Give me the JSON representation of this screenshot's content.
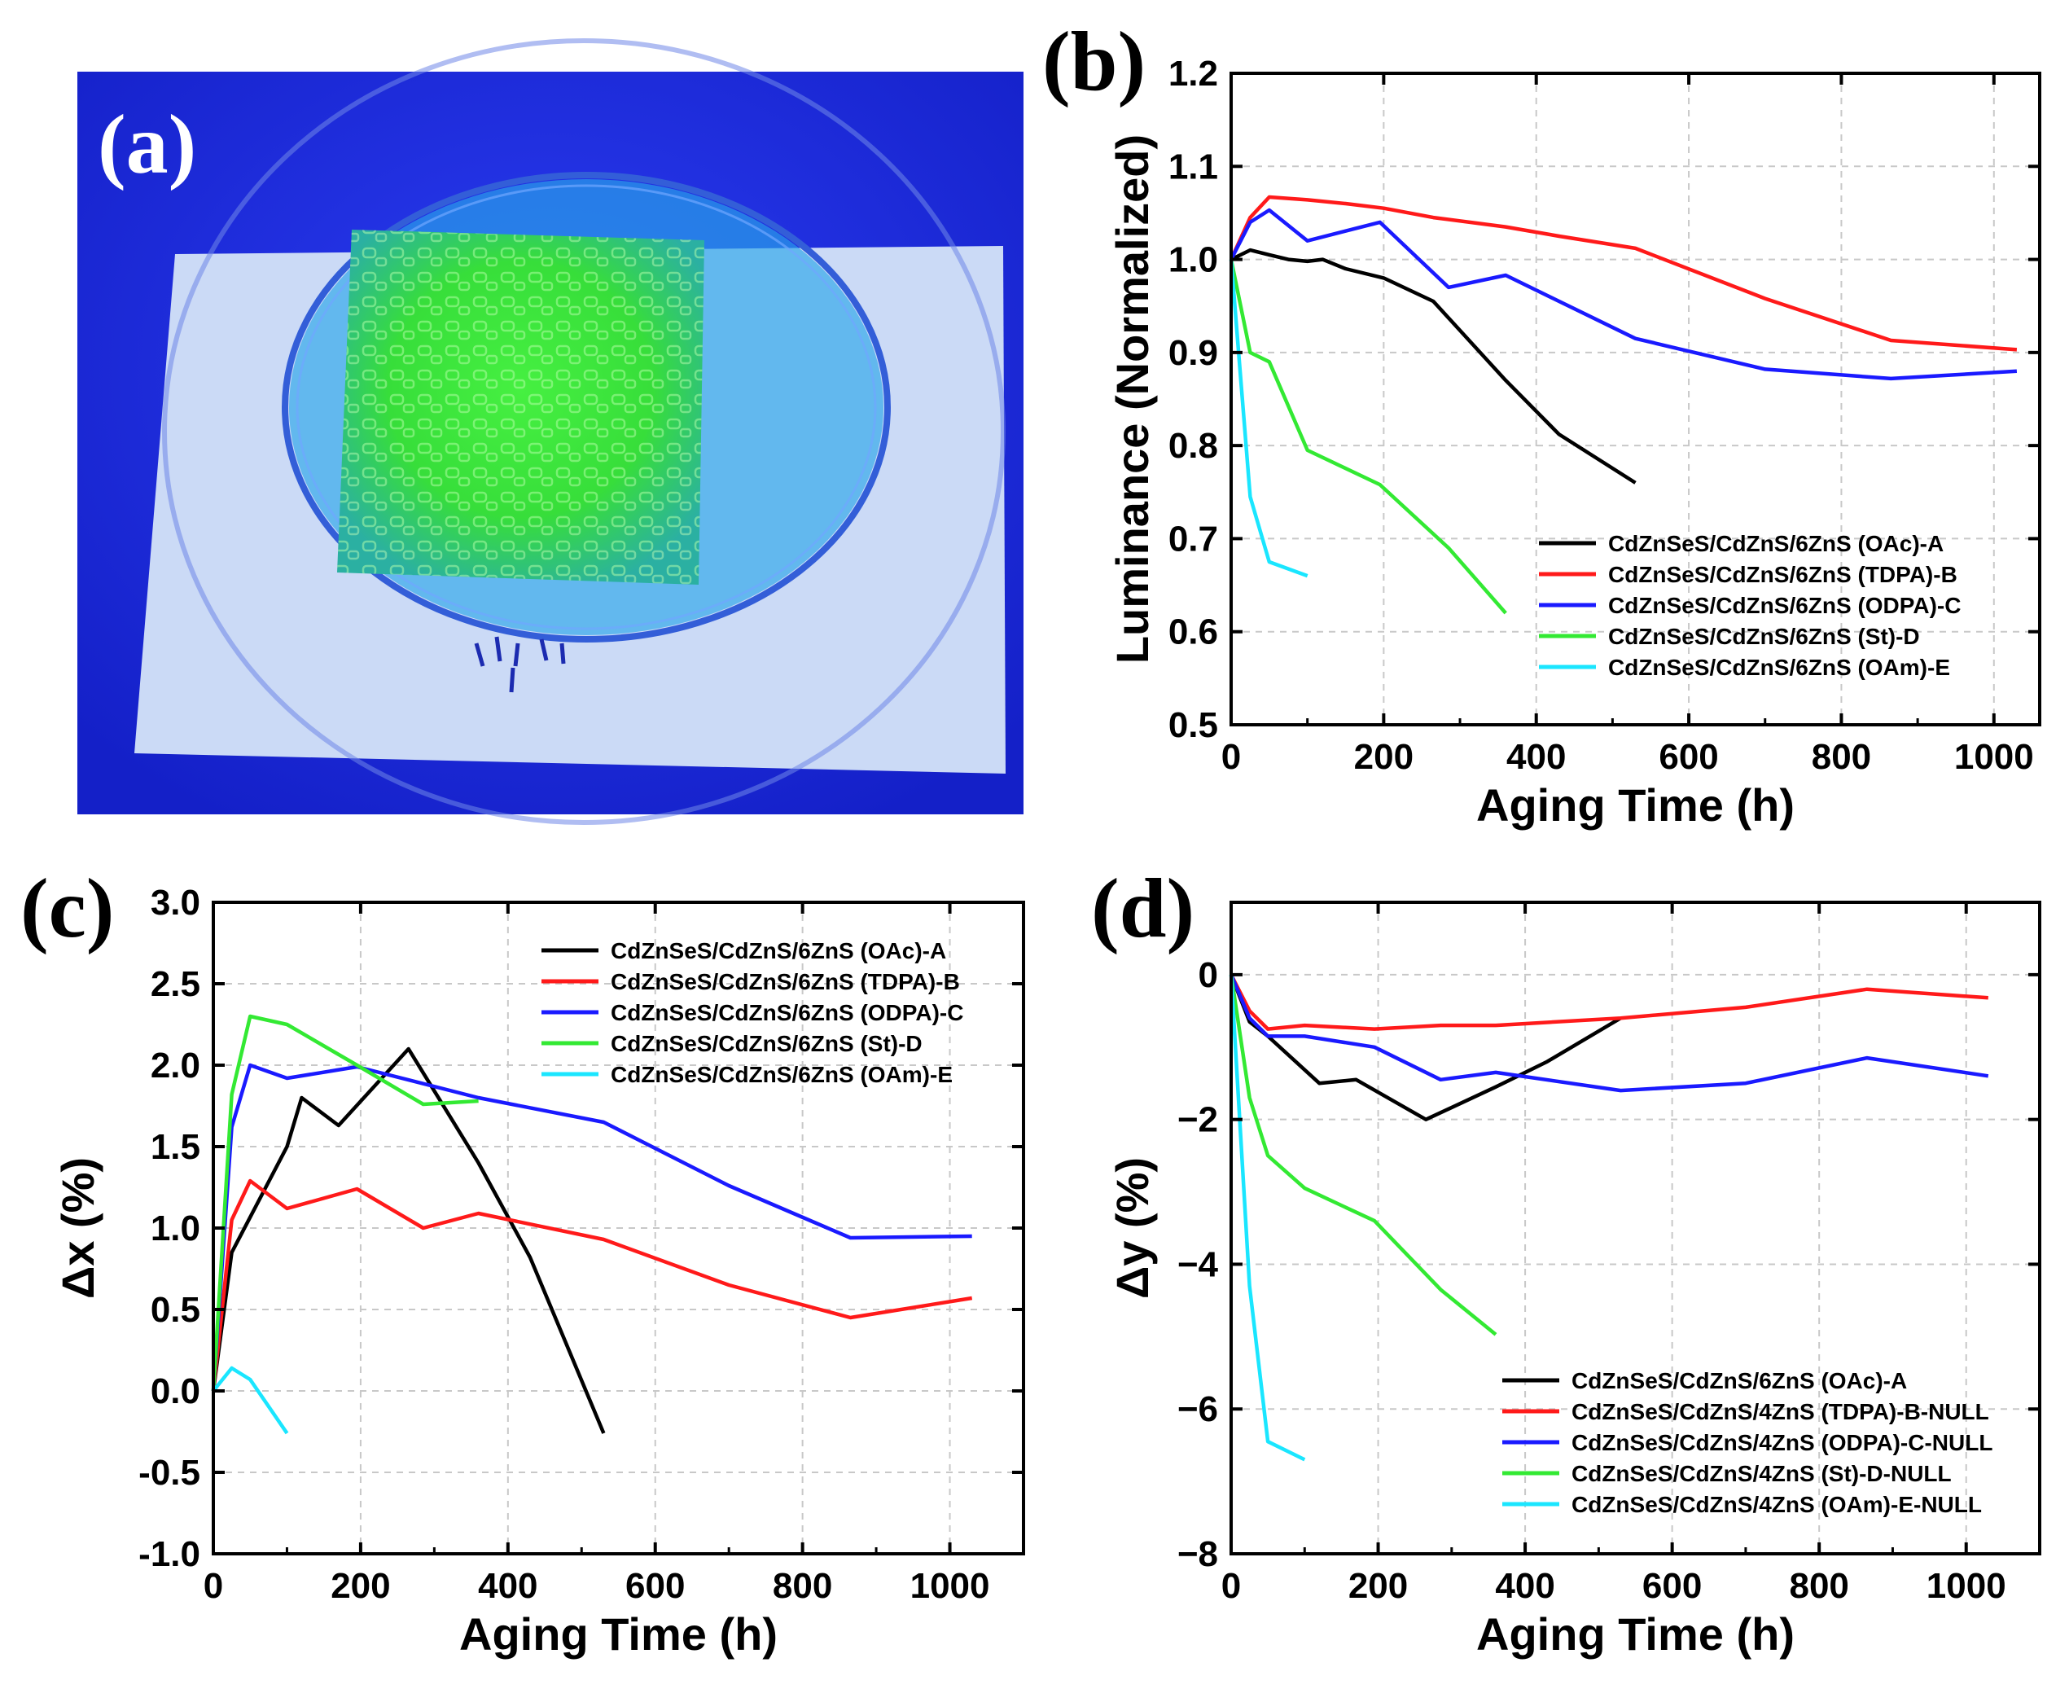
{
  "photo": {
    "label": "(a)",
    "colors": {
      "bg": "#1f2ee0",
      "board": "#c9d8f6",
      "green": "#37e93c",
      "dish": "#3bb6ea"
    }
  },
  "chart_data": [
    {
      "id": "b",
      "type": "line",
      "label": "(b)",
      "xlabel": "Aging Time (h)",
      "ylabel": "Luminance (Normalized)",
      "xlim": [
        0,
        1060
      ],
      "ylim": [
        0.5,
        1.2
      ],
      "xticks": [
        0,
        200,
        400,
        600,
        800,
        1000
      ],
      "yticks": [
        0.5,
        0.6,
        0.7,
        0.8,
        0.9,
        1.0,
        1.1,
        1.2
      ],
      "ytick_labels": [
        "0.5",
        "0.6",
        "0.7",
        "0.8",
        "0.9",
        "1.0",
        "1.1",
        "1.2"
      ],
      "xtick_labels": [
        "0",
        "200",
        "400",
        "600",
        "800",
        "1000"
      ],
      "grid": true,
      "legend_position": "bottom-right",
      "series": [
        {
          "name": "CdZnSeS/CdZnS/6ZnS (OAc)-A",
          "color": "#000000",
          "x": [
            0,
            25,
            50,
            75,
            100,
            120,
            150,
            200,
            265,
            360,
            430,
            530
          ],
          "y": [
            1.0,
            1.01,
            1.005,
            1.0,
            0.998,
            1.0,
            0.99,
            0.98,
            0.955,
            0.87,
            0.812,
            0.76
          ]
        },
        {
          "name": "CdZnSeS/CdZnS/6ZnS (TDPA)-B",
          "color": "#ff1a1a",
          "x": [
            0,
            25,
            50,
            100,
            150,
            200,
            265,
            360,
            430,
            530,
            700,
            865,
            1030
          ],
          "y": [
            1.0,
            1.045,
            1.067,
            1.064,
            1.06,
            1.055,
            1.045,
            1.035,
            1.025,
            1.012,
            0.958,
            0.913,
            0.903
          ]
        },
        {
          "name": "CdZnSeS/CdZnS/6ZnS (ODPA)-C",
          "color": "#1a1aff",
          "x": [
            0,
            25,
            50,
            100,
            195,
            285,
            360,
            530,
            700,
            865,
            1030
          ],
          "y": [
            1.0,
            1.04,
            1.053,
            1.02,
            1.04,
            0.97,
            0.983,
            0.915,
            0.882,
            0.872,
            0.88
          ]
        },
        {
          "name": "CdZnSeS/CdZnS/6ZnS (St)-D",
          "color": "#33e933",
          "x": [
            0,
            25,
            50,
            100,
            195,
            285,
            360
          ],
          "y": [
            1.0,
            0.9,
            0.89,
            0.795,
            0.758,
            0.69,
            0.62
          ]
        },
        {
          "name": "CdZnSeS/CdZnS/6ZnS (OAm)-E",
          "color": "#1ae6ff",
          "x": [
            0,
            25,
            50,
            100
          ],
          "y": [
            1.0,
            0.745,
            0.675,
            0.66
          ]
        }
      ]
    },
    {
      "id": "c",
      "type": "line",
      "label": "(c)",
      "xlabel": "Aging Time (h)",
      "ylabel": "Δx (%)",
      "xlim": [
        0,
        1100
      ],
      "ylim": [
        -1.0,
        3.0
      ],
      "xticks": [
        0,
        200,
        400,
        600,
        800,
        1000
      ],
      "yticks": [
        -1.0,
        -0.5,
        0.0,
        0.5,
        1.0,
        1.5,
        2.0,
        2.5,
        3.0
      ],
      "ytick_labels": [
        "-1.0",
        "-0.5",
        "0.0",
        "0.5",
        "1.0",
        "1.5",
        "2.0",
        "2.5",
        "3.0"
      ],
      "xtick_labels": [
        "0",
        "200",
        "400",
        "600",
        "800",
        "1000"
      ],
      "grid": true,
      "legend_position": "top-right",
      "series": [
        {
          "name": "CdZnSeS/CdZnS/6ZnS (OAc)-A",
          "color": "#000000",
          "x": [
            0,
            25,
            100,
            120,
            170,
            265,
            360,
            430,
            530
          ],
          "y": [
            0.0,
            0.85,
            1.5,
            1.8,
            1.63,
            2.1,
            1.4,
            0.82,
            -0.26
          ]
        },
        {
          "name": "CdZnSeS/CdZnS/6ZnS (TDPA)-B",
          "color": "#ff1a1a",
          "x": [
            0,
            25,
            50,
            100,
            195,
            285,
            360,
            530,
            700,
            865,
            1030
          ],
          "y": [
            0.0,
            1.05,
            1.29,
            1.12,
            1.24,
            1.0,
            1.09,
            0.93,
            0.65,
            0.45,
            0.57
          ]
        },
        {
          "name": "CdZnSeS/CdZnS/6ZnS (ODPA)-C",
          "color": "#1a1aff",
          "x": [
            0,
            25,
            50,
            100,
            195,
            360,
            530,
            700,
            865,
            1030
          ],
          "y": [
            0.0,
            1.62,
            2.0,
            1.92,
            1.99,
            1.8,
            1.65,
            1.26,
            0.94,
            0.95
          ]
        },
        {
          "name": "CdZnSeS/CdZnS/6ZnS (St)-D",
          "color": "#33e933",
          "x": [
            0,
            25,
            50,
            100,
            195,
            285,
            360
          ],
          "y": [
            0.0,
            1.82,
            2.3,
            2.25,
            2.0,
            1.76,
            1.78
          ]
        },
        {
          "name": "CdZnSeS/CdZnS/6ZnS (OAm)-E",
          "color": "#1ae6ff",
          "x": [
            0,
            25,
            50,
            100
          ],
          "y": [
            0.0,
            0.14,
            0.07,
            -0.26
          ]
        }
      ]
    },
    {
      "id": "d",
      "type": "line",
      "label": "(d)",
      "xlabel": "Aging Time (h)",
      "ylabel": "Δy (%)",
      "xlim": [
        0,
        1100
      ],
      "ylim": [
        -8,
        1
      ],
      "xticks": [
        0,
        200,
        400,
        600,
        800,
        1000
      ],
      "yticks": [
        -8,
        -6,
        -4,
        -2,
        0
      ],
      "ytick_labels": [
        "−8",
        "−6",
        "−4",
        "−2",
        "0"
      ],
      "xtick_labels": [
        "0",
        "200",
        "400",
        "600",
        "800",
        "1000"
      ],
      "grid": true,
      "legend_position": "bottom-right",
      "series": [
        {
          "name": "CdZnSeS/CdZnS/6ZnS (OAc)-A",
          "color": "#000000",
          "x": [
            0,
            25,
            50,
            120,
            170,
            265,
            360,
            430,
            530
          ],
          "y": [
            0.0,
            -0.65,
            -0.85,
            -1.5,
            -1.45,
            -2.0,
            -1.55,
            -1.2,
            -0.6
          ]
        },
        {
          "name": "CdZnSeS/CdZnS/4ZnS (TDPA)-B-NULL",
          "color": "#ff1a1a",
          "x": [
            0,
            25,
            50,
            100,
            195,
            285,
            360,
            530,
            700,
            865,
            1030
          ],
          "y": [
            0.0,
            -0.5,
            -0.75,
            -0.7,
            -0.75,
            -0.7,
            -0.7,
            -0.6,
            -0.45,
            -0.2,
            -0.32
          ]
        },
        {
          "name": "CdZnSeS/CdZnS/4ZnS (ODPA)-C-NULL",
          "color": "#1a1aff",
          "x": [
            0,
            25,
            50,
            100,
            195,
            285,
            360,
            530,
            700,
            865,
            1030
          ],
          "y": [
            0.0,
            -0.6,
            -0.85,
            -0.85,
            -1.0,
            -1.45,
            -1.35,
            -1.6,
            -1.5,
            -1.15,
            -1.4
          ]
        },
        {
          "name": "CdZnSeS/CdZnS/4ZnS (St)-D-NULL",
          "color": "#33e933",
          "x": [
            0,
            25,
            50,
            100,
            195,
            285,
            360
          ],
          "y": [
            0.0,
            -1.7,
            -2.5,
            -2.95,
            -3.4,
            -4.35,
            -4.97
          ]
        },
        {
          "name": "CdZnSeS/CdZnS/4ZnS (OAm)-E-NULL",
          "color": "#1ae6ff",
          "x": [
            0,
            25,
            50,
            100
          ],
          "y": [
            0.0,
            -4.3,
            -6.45,
            -6.7
          ]
        }
      ]
    }
  ]
}
